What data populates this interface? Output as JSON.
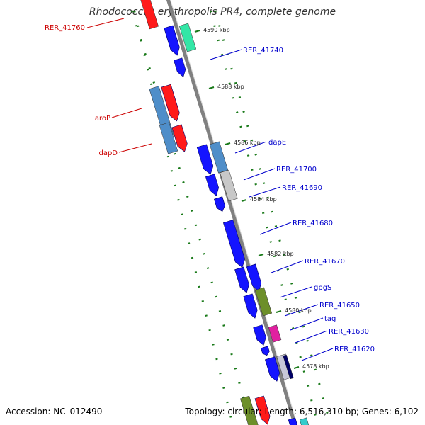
{
  "title": "Rhodococcus erythropolis PR4, complete genome",
  "accession_text": "Accession: NC_012490",
  "summary_text": "Topology: circular; Length: 6,516,310 bp; Genes: 6,102",
  "colors": {
    "backbone": "#808080",
    "dots": "#1a7a1a",
    "label_right": "#0000cc",
    "label_left": "#cc0000",
    "tick": "#1a7a1a"
  },
  "kbp_labels": [
    "4590 kbp",
    "4588 kbp",
    "4586 kbp",
    "4584 kbp",
    "4582 kbp",
    "4580 kbp",
    "4578 kbp"
  ],
  "right_gene_labels": [
    "RER_41740",
    "dapE",
    "RER_41700",
    "RER_41690",
    "RER_41680",
    "RER_41670",
    "gpgS",
    "RER_41650",
    "tag",
    "RER_41630",
    "RER_41620"
  ],
  "left_gene_labels": [
    "RER_41760",
    "aroP",
    "dapD"
  ],
  "icons": [
    "gene-arrow",
    "gene-box"
  ]
}
